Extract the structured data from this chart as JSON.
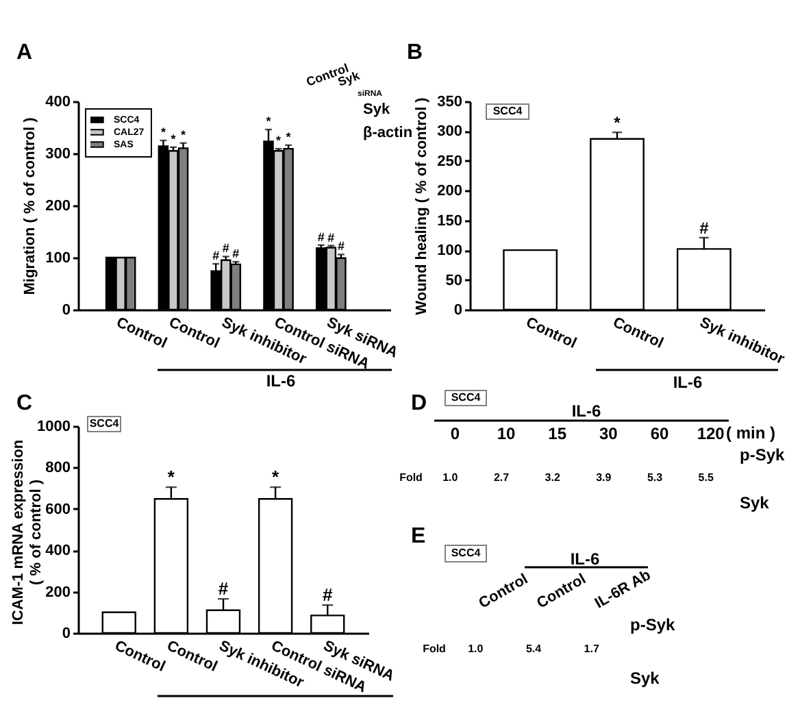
{
  "chart_data": [
    {
      "type": "bar",
      "title": "A",
      "ylabel": "Migration ( % of control )",
      "categories": [
        "Control",
        "Control",
        "Syk inhibitor",
        "Control siRNA",
        "Syk siRNA"
      ],
      "series": [
        {
          "name": "SCC4",
          "color": "#000000",
          "values": [
            100,
            314,
            74,
            323,
            118
          ],
          "errors": [
            null,
            11,
            14,
            23,
            6
          ],
          "value_labels": [
            null,
            "*",
            "#",
            "*",
            "#"
          ]
        },
        {
          "name": "CAL27",
          "color": "#c8c8c8",
          "values": [
            100,
            305,
            95,
            305,
            119
          ],
          "errors": [
            null,
            7,
            7,
            4,
            4
          ],
          "value_labels": [
            null,
            "*",
            "#",
            "*",
            "#"
          ]
        },
        {
          "name": "SAS",
          "color": "#7f7f7f",
          "values": [
            100,
            310,
            87,
            309,
            99
          ],
          "errors": [
            null,
            10,
            5,
            7,
            7
          ],
          "value_labels": [
            null,
            "*",
            "#",
            "*",
            "#"
          ]
        }
      ],
      "ylim": [
        0,
        400
      ],
      "yticks": [
        0,
        100,
        200,
        300,
        400
      ],
      "legend": "top left",
      "annotations": [
        "IL-6",
        "Control",
        "Syk$_{siRNA}$",
        "Syk",
        "β-actin"
      ]
    },
    {
      "type": "bar",
      "title": "B",
      "ylabel": "Wound healing ( % of control )",
      "categories": [
        "Control",
        "Control",
        "Syk inhibitor"
      ],
      "values": [
        100,
        287,
        102
      ],
      "errors": [
        null,
        11,
        19
      ],
      "value_labels": [
        null,
        "*",
        "#"
      ],
      "color": "#ffffff",
      "ylim": [
        0,
        350
      ],
      "yticks": [
        0,
        50,
        100,
        150,
        200,
        250,
        300,
        350
      ],
      "annotations": [
        "SCC4",
        "IL-6"
      ]
    },
    {
      "type": "bar",
      "title": "C",
      "ylabel": "ICAM-1 mRNA expression\n( % of control )",
      "categories": [
        "Control",
        "Control",
        "Syk inhibitor",
        "Control siRNA",
        "Syk siRNA"
      ],
      "values": [
        100,
        648,
        110,
        648,
        85
      ],
      "errors": [
        null,
        57,
        55,
        57,
        50
      ],
      "value_labels": [
        null,
        "*",
        "#",
        "*",
        "#"
      ],
      "color": "#ffffff",
      "ylim": [
        0,
        1000
      ],
      "yticks": [
        0,
        200,
        400,
        600,
        800,
        1000
      ],
      "annotations": [
        "SCC4"
      ]
    },
    {
      "type": "other",
      "title": "D",
      "categories": [
        "0",
        "10",
        "15",
        "30",
        "60",
        "120"
      ],
      "values": [
        1.0,
        2.7,
        3.2,
        3.9,
        5.3,
        5.5
      ],
      "value_labels": [
        "1.0",
        "2.7",
        "3.2",
        "3.9",
        "5.3",
        "5.5"
      ],
      "annotations": [
        "SCC4",
        "IL-6",
        "( min )",
        "p-Syk",
        "Fold",
        "Syk"
      ]
    },
    {
      "type": "other",
      "title": "E",
      "categories": [
        "Control",
        "Control",
        "IL-6R Ab"
      ],
      "values": [
        1.0,
        5.4,
        1.7
      ],
      "value_labels": [
        "1.0",
        "5.4",
        "1.7"
      ],
      "annotations": [
        "SCC4",
        "IL-6",
        "p-Syk",
        "Fold",
        "Syk"
      ]
    }
  ]
}
